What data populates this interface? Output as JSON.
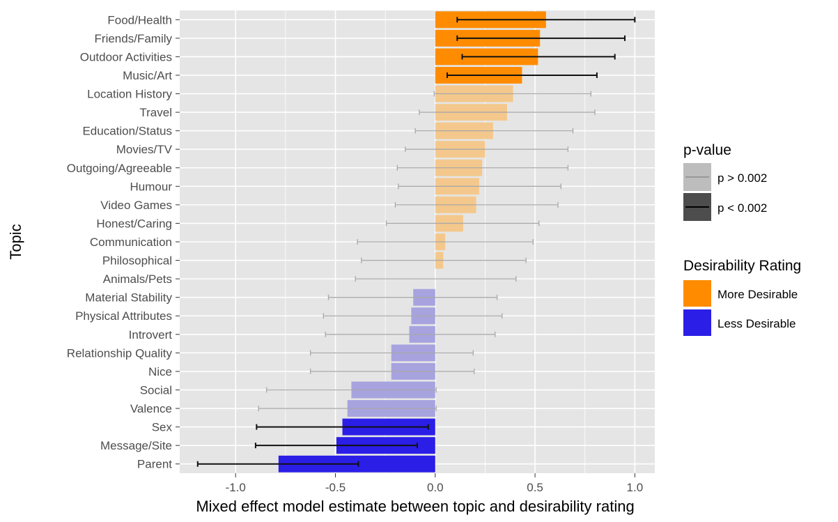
{
  "chart_data": {
    "type": "bar",
    "orientation": "horizontal",
    "xlabel": "Mixed effect model estimate between topic and desirability rating",
    "ylabel": "Topic",
    "xlim": [
      -1.28,
      1.1
    ],
    "xticks": [
      -1.0,
      -0.5,
      0.0,
      0.5,
      1.0
    ],
    "xtick_labels": [
      "-1.0",
      "-0.5",
      "0.0",
      "0.5",
      "1.0"
    ],
    "grid": true,
    "categories": [
      "Food/Health",
      "Friends/Family",
      "Outdoor Activities",
      "Music/Art",
      "Location History",
      "Travel",
      "Education/Status",
      "Movies/TV",
      "Outgoing/Agreeable",
      "Humour",
      "Video Games",
      "Honest/Caring",
      "Communication",
      "Philosophical",
      "Animals/Pets",
      "Material Stability",
      "Physical Attributes",
      "Introvert",
      "Relationship Quality",
      "Nice",
      "Social",
      "Valence",
      "Sex",
      "Message/Site",
      "Parent"
    ],
    "values": [
      0.555,
      0.525,
      0.515,
      0.435,
      0.39,
      0.36,
      0.29,
      0.25,
      0.235,
      0.22,
      0.205,
      0.14,
      0.05,
      0.04,
      0.0,
      -0.11,
      -0.12,
      -0.13,
      -0.22,
      -0.22,
      -0.42,
      -0.44,
      -0.465,
      -0.495,
      -0.785
    ],
    "ci_lower": [
      0.11,
      0.11,
      0.135,
      0.06,
      -0.005,
      -0.08,
      -0.1,
      -0.15,
      -0.19,
      -0.185,
      -0.2,
      -0.245,
      -0.39,
      -0.37,
      -0.4,
      -0.535,
      -0.56,
      -0.55,
      -0.625,
      -0.625,
      -0.845,
      -0.885,
      -0.895,
      -0.9,
      -1.19
    ],
    "ci_upper": [
      1.0,
      0.95,
      0.9,
      0.81,
      0.78,
      0.8,
      0.69,
      0.665,
      0.665,
      0.63,
      0.615,
      0.52,
      0.49,
      0.455,
      0.405,
      0.31,
      0.335,
      0.3,
      0.19,
      0.195,
      0.005,
      0.005,
      -0.035,
      -0.09,
      -0.385
    ],
    "significant": [
      true,
      true,
      true,
      true,
      false,
      false,
      false,
      false,
      false,
      false,
      false,
      false,
      false,
      false,
      false,
      false,
      false,
      false,
      false,
      false,
      false,
      false,
      true,
      true,
      true
    ],
    "desirability": [
      "more",
      "more",
      "more",
      "more",
      "more",
      "more",
      "more",
      "more",
      "more",
      "more",
      "more",
      "more",
      "more",
      "more",
      "more",
      "less",
      "less",
      "less",
      "less",
      "less",
      "less",
      "less",
      "less",
      "less",
      "less"
    ],
    "colors": {
      "more_desirable": "#ff8c00",
      "less_desirable": "#2b1ee6",
      "more_desirable_faded": "#f4c88c",
      "less_desirable_faded": "#a7a3df",
      "panel_bg": "#e5e5e5",
      "gridline": "#ffffff",
      "err_significant": "#111111",
      "err_nonsignificant": "#a8a8a8"
    },
    "legend": {
      "placement": "right",
      "pvalue_title": "p-value",
      "pvalue_items": [
        "p > 0.002",
        "p < 0.002"
      ],
      "desirability_title": "Desirability Rating",
      "desirability_items": [
        "More Desirable",
        "Less Desirable"
      ]
    }
  }
}
